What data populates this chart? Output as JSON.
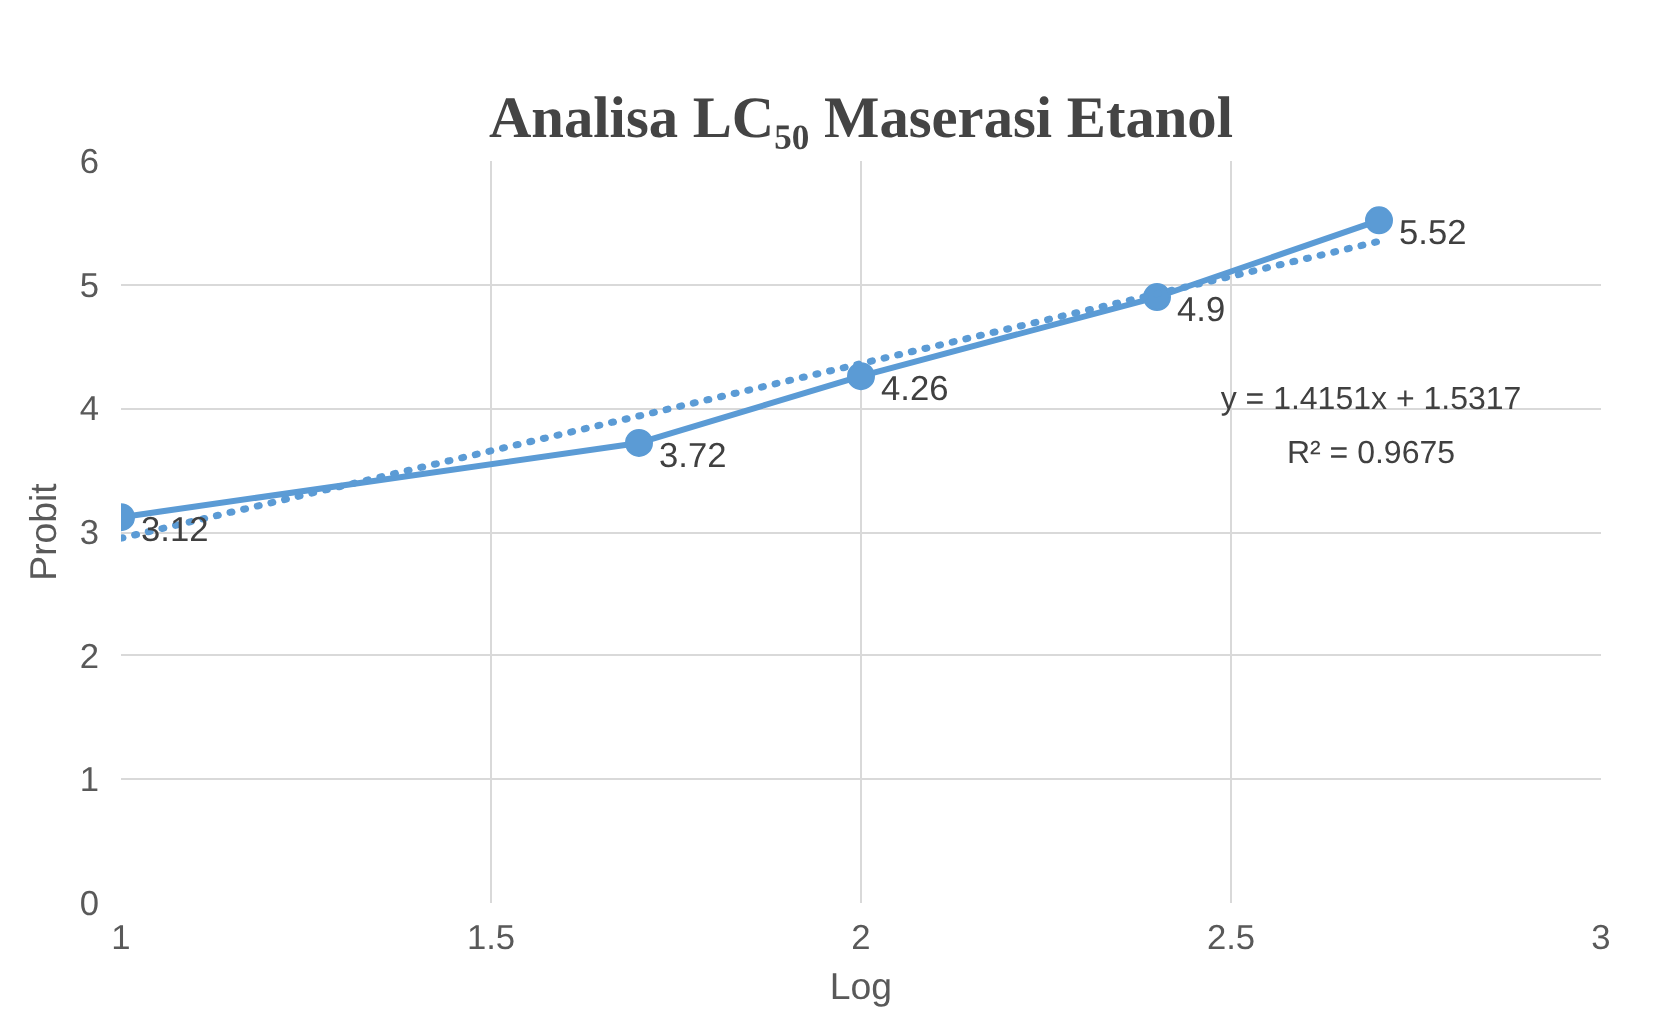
{
  "chart_data": {
    "type": "line",
    "title": "Analisa LC₅₀ Maserasi Etanol",
    "xlabel": "Log",
    "ylabel": "Probit",
    "xlim": [
      1,
      3
    ],
    "xticks": [
      1,
      1.5,
      2,
      2.5,
      3
    ],
    "ylim": [
      0,
      6
    ],
    "yticks": [
      0,
      1,
      2,
      3,
      4,
      5,
      6
    ],
    "grid": true,
    "series": [
      {
        "color": "#5b9bd5",
        "x": [
          1,
          1.7,
          2,
          2.4,
          2.7
        ],
        "values": [
          3.12,
          3.72,
          4.26,
          4.9,
          5.52
        ],
        "marker": "circle",
        "line_style": "solid",
        "data_labels": true
      },
      {
        "type": "line",
        "color": "#5b9bd5",
        "x": [
          1,
          2.7
        ],
        "values": [
          2.95,
          5.35
        ],
        "marker": "none",
        "line_style": "dotted"
      }
    ],
    "annotations": [
      "y = 1.4151x + 1.5317",
      "R² = 0.9675"
    ]
  }
}
